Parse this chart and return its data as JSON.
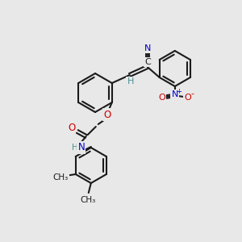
{
  "bg_color": "#e8e8e8",
  "bond_color": "#1a1a1a",
  "atom_colors": {
    "N": "#0000cc",
    "O": "#cc0000",
    "C": "#1a1a1a",
    "H": "#4a9090"
  },
  "bond_lw": 1.5,
  "ring_lw": 1.5
}
